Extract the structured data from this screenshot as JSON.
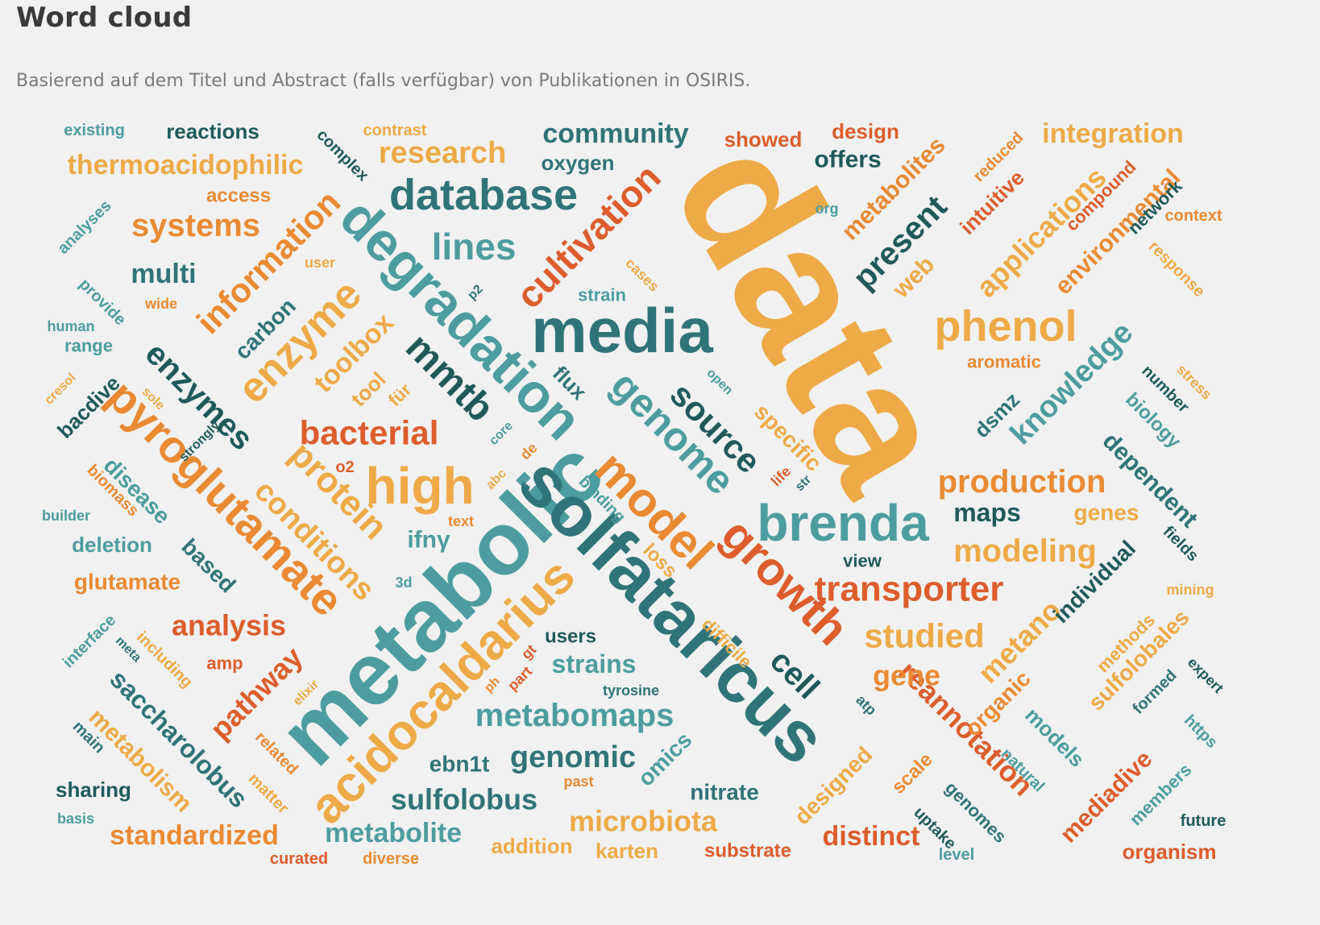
{
  "header": {
    "title": "Word cloud",
    "subtitle": "Basierend auf dem Titel und Abstract (falls verfügbar) von Publikationen in OSIRIS."
  },
  "colors": {
    "orange": "#eeaa47",
    "burnt": "#dd5d2c",
    "amber": "#ea8a33",
    "teal": "#4d9da0",
    "darkteal": "#2f7479",
    "slate": "#1f5a5b"
  },
  "chart_data": {
    "type": "wordcloud",
    "words": [
      {
        "text": "data",
        "color": "orange"
      },
      {
        "text": "metabolic",
        "color": "teal"
      },
      {
        "text": "solfataricus",
        "color": "darkteal"
      },
      {
        "text": "media",
        "color": "darkteal"
      },
      {
        "text": "degradation",
        "color": "teal"
      },
      {
        "text": "acidocaldarius",
        "color": "orange"
      },
      {
        "text": "growth",
        "color": "burnt"
      },
      {
        "text": "model",
        "color": "amber"
      },
      {
        "text": "brenda",
        "color": "teal"
      },
      {
        "text": "pyroglutamate",
        "color": "amber"
      },
      {
        "text": "high",
        "color": "orange"
      },
      {
        "text": "database",
        "color": "darkteal"
      },
      {
        "text": "phenol",
        "color": "orange"
      },
      {
        "text": "enzyme",
        "color": "orange"
      },
      {
        "text": "genome",
        "color": "teal"
      },
      {
        "text": "cultivation",
        "color": "burnt"
      },
      {
        "text": "information",
        "color": "amber"
      },
      {
        "text": "source",
        "color": "slate"
      },
      {
        "text": "transporter",
        "color": "burnt"
      },
      {
        "text": "mmtb",
        "color": "slate"
      },
      {
        "text": "lines",
        "color": "teal"
      },
      {
        "text": "production",
        "color": "amber"
      },
      {
        "text": "modeling",
        "color": "orange"
      },
      {
        "text": "enzymes",
        "color": "slate"
      },
      {
        "text": "protein",
        "color": "orange"
      },
      {
        "text": "conditions",
        "color": "orange"
      },
      {
        "text": "metabomaps",
        "color": "teal"
      },
      {
        "text": "bacterial",
        "color": "burnt"
      },
      {
        "text": "research",
        "color": "orange"
      },
      {
        "text": "systems",
        "color": "amber"
      },
      {
        "text": "studied",
        "color": "orange"
      },
      {
        "text": "present",
        "color": "slate"
      },
      {
        "text": "knowledge",
        "color": "teal"
      },
      {
        "text": "applications",
        "color": "orange"
      },
      {
        "text": "community",
        "color": "darkteal"
      },
      {
        "text": "reannotation",
        "color": "burnt"
      },
      {
        "text": "metano",
        "color": "orange"
      },
      {
        "text": "cell",
        "color": "slate"
      },
      {
        "text": "microbiota",
        "color": "orange"
      },
      {
        "text": "sulfolobus",
        "color": "darkteal"
      },
      {
        "text": "genomic",
        "color": "darkteal"
      },
      {
        "text": "metabolite",
        "color": "teal"
      },
      {
        "text": "standardized",
        "color": "amber"
      },
      {
        "text": "analysis",
        "color": "burnt"
      },
      {
        "text": "saccharolobus",
        "color": "darkteal"
      },
      {
        "text": "metabolism",
        "color": "orange"
      },
      {
        "text": "pathway",
        "color": "burnt"
      },
      {
        "text": "toolbox",
        "color": "orange"
      },
      {
        "text": "thermoacidophilic",
        "color": "orange"
      },
      {
        "text": "integration",
        "color": "orange"
      },
      {
        "text": "metabolites",
        "color": "amber"
      },
      {
        "text": "environmental",
        "color": "amber"
      },
      {
        "text": "dependent",
        "color": "darkteal"
      },
      {
        "text": "individual",
        "color": "slate"
      },
      {
        "text": "sulfolobales",
        "color": "orange"
      },
      {
        "text": "mediadive",
        "color": "burnt"
      },
      {
        "text": "distinct",
        "color": "burnt"
      },
      {
        "text": "gene",
        "color": "amber"
      },
      {
        "text": "maps",
        "color": "slate"
      },
      {
        "text": "genes",
        "color": "orange"
      },
      {
        "text": "strains",
        "color": "teal"
      },
      {
        "text": "glutamate",
        "color": "amber"
      },
      {
        "text": "specific",
        "color": "orange"
      },
      {
        "text": "designed",
        "color": "orange"
      },
      {
        "text": "organic",
        "color": "amber"
      },
      {
        "text": "models",
        "color": "teal"
      },
      {
        "text": "offers",
        "color": "slate"
      },
      {
        "text": "multi",
        "color": "darkteal"
      },
      {
        "text": "web",
        "color": "orange"
      },
      {
        "text": "intuitive",
        "color": "burnt"
      },
      {
        "text": "disease",
        "color": "teal"
      },
      {
        "text": "based",
        "color": "darkteal"
      },
      {
        "text": "carbon",
        "color": "darkteal"
      },
      {
        "text": "omics",
        "color": "teal"
      },
      {
        "text": "nitrate",
        "color": "darkteal"
      },
      {
        "text": "substrate",
        "color": "burnt"
      },
      {
        "text": "organism",
        "color": "burnt"
      },
      {
        "text": "reactions",
        "color": "slate"
      },
      {
        "text": "oxygen",
        "color": "darkteal"
      },
      {
        "text": "design",
        "color": "burnt"
      },
      {
        "text": "showed",
        "color": "burnt"
      },
      {
        "text": "compound",
        "color": "burnt"
      },
      {
        "text": "network",
        "color": "slate"
      },
      {
        "text": "ifnγ",
        "color": "teal"
      },
      {
        "text": "dsmz",
        "color": "darkteal"
      },
      {
        "text": "ebn1t",
        "color": "darkteal"
      },
      {
        "text": "methods",
        "color": "orange"
      },
      {
        "text": "scale",
        "color": "amber"
      },
      {
        "text": "bacdive",
        "color": "slate"
      },
      {
        "text": "deletion",
        "color": "teal"
      },
      {
        "text": "flux",
        "color": "darkteal"
      },
      {
        "text": "biology",
        "color": "teal"
      },
      {
        "text": "difficile",
        "color": "orange"
      },
      {
        "text": "loss",
        "color": "orange"
      },
      {
        "text": "karten",
        "color": "orange"
      },
      {
        "text": "addition",
        "color": "orange"
      },
      {
        "text": "sharing",
        "color": "slate"
      },
      {
        "text": "users",
        "color": "slate"
      },
      {
        "text": "tool",
        "color": "orange"
      },
      {
        "text": "range",
        "color": "teal"
      },
      {
        "text": "access",
        "color": "amber"
      },
      {
        "text": "aromatic",
        "color": "amber"
      },
      {
        "text": "genomes",
        "color": "darkteal"
      },
      {
        "text": "view",
        "color": "slate"
      },
      {
        "text": "number",
        "color": "slate"
      },
      {
        "text": "strain",
        "color": "teal"
      },
      {
        "text": "members",
        "color": "teal"
      },
      {
        "text": "context",
        "color": "amber"
      },
      {
        "text": "response",
        "color": "orange"
      },
      {
        "text": "reduced",
        "color": "amber"
      },
      {
        "text": "analyses",
        "color": "teal"
      },
      {
        "text": "interface",
        "color": "teal"
      },
      {
        "text": "including",
        "color": "orange"
      },
      {
        "text": "provide",
        "color": "teal"
      },
      {
        "text": "existing",
        "color": "teal"
      },
      {
        "text": "complex",
        "color": "slate"
      },
      {
        "text": "contrast",
        "color": "orange"
      },
      {
        "text": "biomass",
        "color": "amber"
      },
      {
        "text": "related",
        "color": "amber"
      },
      {
        "text": "matter",
        "color": "orange"
      },
      {
        "text": "formed",
        "color": "darkteal"
      },
      {
        "text": "expert",
        "color": "slate"
      },
      {
        "text": "https",
        "color": "teal"
      },
      {
        "text": "mining",
        "color": "orange"
      },
      {
        "text": "fields",
        "color": "slate"
      },
      {
        "text": "stress",
        "color": "orange"
      },
      {
        "text": "main",
        "color": "darkteal"
      },
      {
        "text": "basis",
        "color": "teal"
      },
      {
        "text": "curated",
        "color": "burnt"
      },
      {
        "text": "diverse",
        "color": "amber"
      },
      {
        "text": "level",
        "color": "teal"
      },
      {
        "text": "future",
        "color": "slate"
      },
      {
        "text": "uptake",
        "color": "slate"
      },
      {
        "text": "natural",
        "color": "teal"
      },
      {
        "text": "tyrosine",
        "color": "darkteal"
      },
      {
        "text": "binding",
        "color": "teal"
      },
      {
        "text": "human",
        "color": "teal"
      },
      {
        "text": "builder",
        "color": "teal"
      },
      {
        "text": "amp",
        "color": "burnt"
      },
      {
        "text": "user",
        "color": "orange"
      },
      {
        "text": "wide",
        "color": "amber"
      },
      {
        "text": "cases",
        "color": "orange"
      },
      {
        "text": "org",
        "color": "teal"
      },
      {
        "text": "open",
        "color": "teal"
      },
      {
        "text": "life",
        "color": "burnt"
      },
      {
        "text": "str",
        "color": "darkteal"
      },
      {
        "text": "core",
        "color": "teal"
      },
      {
        "text": "abc",
        "color": "orange"
      },
      {
        "text": "de",
        "color": "amber"
      },
      {
        "text": "text",
        "color": "amber"
      },
      {
        "text": "o2",
        "color": "burnt"
      },
      {
        "text": "3d",
        "color": "teal"
      },
      {
        "text": "gt",
        "color": "burnt"
      },
      {
        "text": "part",
        "color": "burnt"
      },
      {
        "text": "ph",
        "color": "amber"
      },
      {
        "text": "atp",
        "color": "darkteal"
      },
      {
        "text": "past",
        "color": "amber"
      },
      {
        "text": "meta",
        "color": "darkteal"
      },
      {
        "text": "elixir",
        "color": "orange"
      },
      {
        "text": "cresol",
        "color": "orange"
      },
      {
        "text": "sole",
        "color": "orange"
      },
      {
        "text": "strongly",
        "color": "slate"
      },
      {
        "text": "für",
        "color": "orange"
      },
      {
        "text": "p2",
        "color": "darkteal"
      }
    ]
  }
}
